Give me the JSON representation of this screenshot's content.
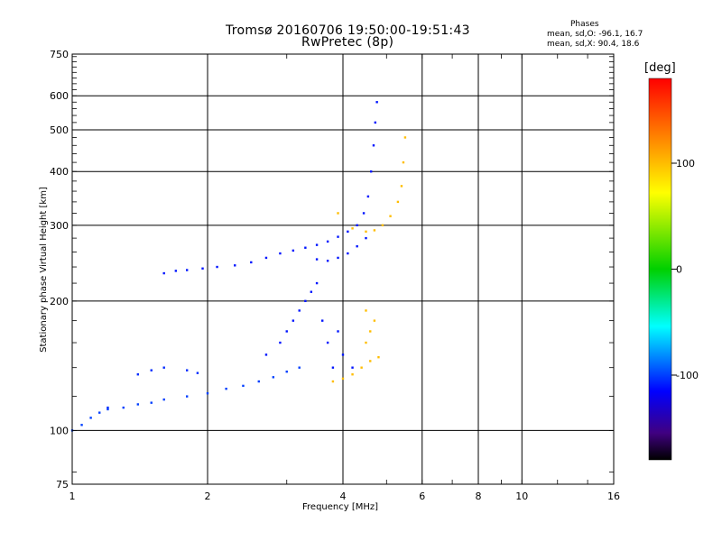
{
  "chart_data": {
    "type": "scatter",
    "title": "Tromsø 20160706 19:50:00-19:51:43",
    "subtitle": "RwPretec (8p)",
    "xlabel": "Frequency [MHz]",
    "ylabel": "Stationary phase Virtual Height [km]",
    "x_scale": "log",
    "y_scale": "log",
    "xlim": [
      1,
      16
    ],
    "ylim": [
      75,
      750
    ],
    "x_ticks": [
      1,
      2,
      4,
      6,
      8,
      10,
      16
    ],
    "x_tick_labels": [
      "1",
      "2",
      "4",
      "6",
      "8",
      "10",
      "16"
    ],
    "y_ticks": [
      75,
      100,
      200,
      300,
      400,
      500,
      600,
      750
    ],
    "y_tick_labels": [
      "75",
      "100",
      "200",
      "300",
      "400",
      "500",
      "600",
      "750"
    ],
    "grid": true,
    "colorbar": {
      "unit": "[deg]",
      "ticks": [
        100,
        0,
        -100
      ],
      "tick_labels": [
        "100",
        "0",
        "-100"
      ],
      "range": [
        -180,
        180
      ]
    },
    "stats": {
      "title": "Phases",
      "o_mode": "mean, sd,O: -96.1, 16.7",
      "x_mode": "mean, sd,X:  90.4, 18.6"
    },
    "traces": [
      {
        "name_desc": "lower E/F1 trace",
        "phase": -100,
        "points": [
          [
            1.0,
            100
          ],
          [
            1.05,
            103
          ],
          [
            1.1,
            107
          ],
          [
            1.15,
            110
          ],
          [
            1.2,
            112
          ],
          [
            1.3,
            113
          ],
          [
            1.4,
            115
          ],
          [
            1.5,
            116
          ],
          [
            1.6,
            118
          ],
          [
            1.8,
            120
          ],
          [
            2.0,
            122
          ],
          [
            2.2,
            125
          ],
          [
            2.4,
            127
          ],
          [
            2.6,
            130
          ],
          [
            2.8,
            133
          ],
          [
            3.0,
            137
          ],
          [
            3.2,
            140
          ]
        ]
      },
      {
        "name_desc": "secondary lower trace",
        "phase": -105,
        "points": [
          [
            1.2,
            113
          ],
          [
            1.4,
            135
          ],
          [
            1.5,
            138
          ],
          [
            1.6,
            140
          ],
          [
            1.8,
            138
          ],
          [
            1.9,
            136
          ]
        ]
      },
      {
        "name_desc": "F trace",
        "phase": -110,
        "points": [
          [
            1.6,
            232
          ],
          [
            1.7,
            235
          ],
          [
            1.8,
            236
          ],
          [
            1.95,
            238
          ],
          [
            2.1,
            240
          ],
          [
            2.3,
            242
          ],
          [
            2.5,
            246
          ],
          [
            2.7,
            252
          ],
          [
            2.9,
            258
          ],
          [
            3.1,
            262
          ],
          [
            3.3,
            266
          ],
          [
            3.5,
            270
          ],
          [
            3.7,
            275
          ],
          [
            3.9,
            282
          ],
          [
            4.1,
            290
          ],
          [
            4.3,
            300
          ],
          [
            4.45,
            320
          ],
          [
            4.55,
            350
          ],
          [
            4.62,
            400
          ],
          [
            4.68,
            460
          ],
          [
            4.72,
            520
          ],
          [
            4.76,
            580
          ]
        ]
      },
      {
        "name_desc": "F cusp lower branch",
        "phase": -110,
        "points": [
          [
            3.5,
            250
          ],
          [
            3.7,
            248
          ],
          [
            3.9,
            252
          ],
          [
            4.1,
            258
          ],
          [
            4.3,
            268
          ],
          [
            4.5,
            280
          ]
        ]
      },
      {
        "name_desc": "X-mode F trace",
        "phase": 100,
        "points": [
          [
            3.9,
            320
          ],
          [
            4.2,
            295
          ],
          [
            4.5,
            290
          ],
          [
            4.7,
            292
          ],
          [
            4.9,
            300
          ],
          [
            5.1,
            315
          ],
          [
            5.3,
            340
          ],
          [
            5.4,
            370
          ],
          [
            5.45,
            420
          ],
          [
            5.5,
            480
          ]
        ]
      },
      {
        "name_desc": "F1 scatter",
        "phase": -110,
        "points": [
          [
            2.7,
            150
          ],
          [
            2.9,
            160
          ],
          [
            3.0,
            170
          ],
          [
            3.1,
            180
          ],
          [
            3.2,
            190
          ],
          [
            3.3,
            200
          ],
          [
            3.4,
            210
          ],
          [
            3.5,
            220
          ],
          [
            3.6,
            180
          ],
          [
            3.7,
            160
          ],
          [
            3.8,
            140
          ],
          [
            3.9,
            170
          ],
          [
            4.0,
            150
          ],
          [
            4.2,
            140
          ]
        ]
      },
      {
        "name_desc": "X-mode F1 cluster",
        "phase": 100,
        "points": [
          [
            3.8,
            130
          ],
          [
            4.0,
            132
          ],
          [
            4.2,
            135
          ],
          [
            4.4,
            140
          ],
          [
            4.6,
            145
          ],
          [
            4.8,
            148
          ],
          [
            4.5,
            160
          ],
          [
            4.6,
            170
          ],
          [
            4.7,
            180
          ],
          [
            4.5,
            190
          ]
        ]
      }
    ]
  }
}
